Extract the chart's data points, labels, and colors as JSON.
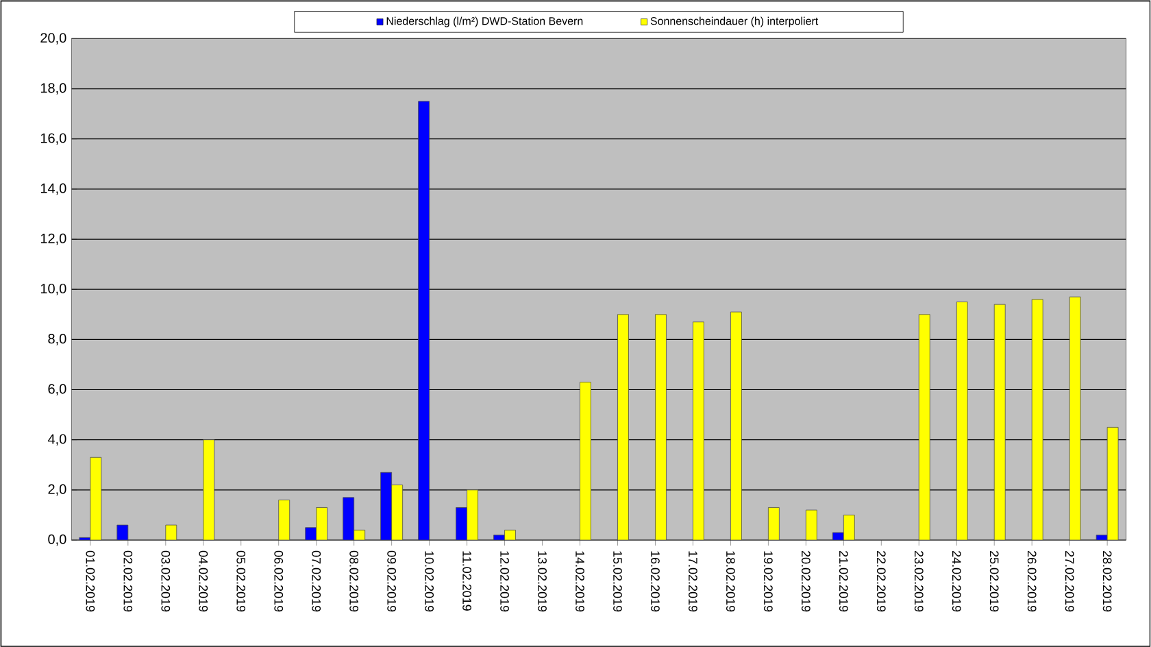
{
  "chart_data": {
    "type": "bar",
    "categories": [
      "01.02.2019",
      "02.02.2019",
      "03.02.2019",
      "04.02.2019",
      "05.02.2019",
      "06.02.2019",
      "07.02.2019",
      "08.02.2019",
      "09.02.2019",
      "10.02.2019",
      "11.02.2019",
      "12.02.2019",
      "13.02.2019",
      "14.02.2019",
      "15.02.2019",
      "16.02.2019",
      "17.02.2019",
      "18.02.2019",
      "19.02.2019",
      "20.02.2019",
      "21.02.2019",
      "22.02.2019",
      "23.02.2019",
      "24.02.2019",
      "25.02.2019",
      "26.02.2019",
      "27.02.2019",
      "28.02.2019"
    ],
    "series": [
      {
        "name": "Niederschlag (l/m²) DWD-Station Bevern",
        "color": "#0000ff",
        "values": [
          0.1,
          0.6,
          null,
          null,
          null,
          null,
          0.5,
          1.7,
          2.7,
          17.5,
          1.3,
          0.2,
          null,
          null,
          null,
          null,
          null,
          null,
          null,
          null,
          0.3,
          null,
          null,
          null,
          null,
          null,
          null,
          0.2
        ]
      },
      {
        "name": "Sonnenscheindauer (h) interpoliert",
        "color": "#ffff00",
        "values": [
          3.3,
          null,
          0.6,
          4.0,
          null,
          1.6,
          1.3,
          0.4,
          2.2,
          null,
          2.0,
          0.4,
          null,
          6.3,
          9.0,
          9.0,
          8.7,
          9.1,
          1.3,
          1.2,
          1.0,
          null,
          9.0,
          9.5,
          9.4,
          9.6,
          9.7,
          4.5
        ]
      }
    ],
    "ylim": [
      0,
      20
    ],
    "yticks": [
      {
        "value": 0,
        "label": "0,0"
      },
      {
        "value": 2,
        "label": "2,0"
      },
      {
        "value": 4,
        "label": "4,0"
      },
      {
        "value": 6,
        "label": "6,0"
      },
      {
        "value": 8,
        "label": "8,0"
      },
      {
        "value": 10,
        "label": "10,0"
      },
      {
        "value": 12,
        "label": "12,0"
      },
      {
        "value": 14,
        "label": "14,0"
      },
      {
        "value": 16,
        "label": "16,0"
      },
      {
        "value": 18,
        "label": "18,0"
      },
      {
        "value": 20,
        "label": "20,0"
      }
    ],
    "grid": "y",
    "legend": "top"
  }
}
